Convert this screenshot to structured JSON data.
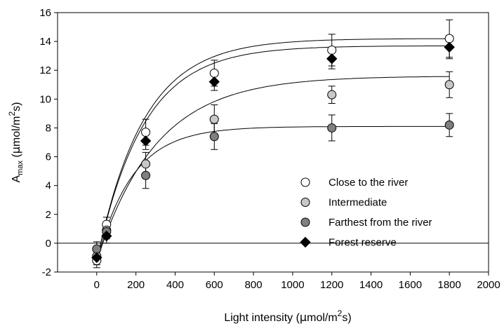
{
  "chart_data": {
    "type": "scatter",
    "xlabel": "Light intensity (μmol/m²s)",
    "xlabel_parts": {
      "main": "Light intensity (",
      "mu": "μ",
      "rest": "mol/m",
      "sup": "2",
      "end": "s)"
    },
    "ylabel": "Amax (μmol/m²s)",
    "ylabel_parts": {
      "main": "A",
      "sub": "max",
      "open": " (",
      "mu": "μ",
      "rest": "mol/m",
      "sup": "2",
      "end": "s)"
    },
    "xlim": [
      -200,
      2000
    ],
    "ylim": [
      -2,
      16
    ],
    "xticks": [
      0,
      200,
      400,
      600,
      800,
      1000,
      1200,
      1400,
      1600,
      1800,
      2000
    ],
    "yticks": [
      -2,
      0,
      2,
      4,
      6,
      8,
      10,
      12,
      14,
      16
    ],
    "grid": false,
    "zero_line": true,
    "legend_position": "lower-right",
    "series": [
      {
        "name": "Close to the river",
        "marker": "circle",
        "color": "#ffffff",
        "x": [
          0,
          50,
          250,
          600,
          1200,
          1800
        ],
        "y": [
          -1.2,
          1.3,
          7.7,
          11.8,
          13.4,
          14.2
        ],
        "err": [
          0.5,
          0.5,
          0.9,
          0.9,
          1.1,
          1.3
        ],
        "fit": {
          "amax": 14.2,
          "k": 0.0042,
          "b": 1.25
        }
      },
      {
        "name": "Intermediate",
        "marker": "circle",
        "color": "#c8c8c8",
        "x": [
          0,
          50,
          250,
          600,
          1200,
          1800
        ],
        "y": [
          -0.9,
          0.9,
          5.5,
          8.6,
          10.3,
          11.0
        ],
        "err": [
          0.5,
          0.5,
          0.8,
          1.0,
          0.6,
          0.9
        ],
        "fit": {
          "amax": 11.6,
          "k": 0.0033,
          "b": 1.25
        }
      },
      {
        "name": "Farthest from the river",
        "marker": "circle",
        "color": "#7f7f7f",
        "x": [
          0,
          50,
          250,
          600,
          1200,
          1800
        ],
        "y": [
          -0.4,
          0.8,
          4.7,
          7.4,
          8.0,
          8.2
        ],
        "err": [
          0.5,
          0.5,
          0.9,
          0.9,
          0.9,
          0.8
        ],
        "fit": {
          "amax": 8.1,
          "k": 0.0055,
          "b": 1.25
        }
      },
      {
        "name": "Forest reserve",
        "marker": "diamond",
        "color": "#000000",
        "x": [
          0,
          50,
          250,
          600,
          1200,
          1800
        ],
        "y": [
          -1.0,
          0.5,
          7.1,
          11.2,
          12.8,
          13.6
        ],
        "err": [
          0.5,
          0.5,
          0.6,
          0.6,
          0.7,
          0.8
        ],
        "fit": {
          "amax": 13.7,
          "k": 0.0042,
          "b": 1.25
        }
      }
    ]
  }
}
